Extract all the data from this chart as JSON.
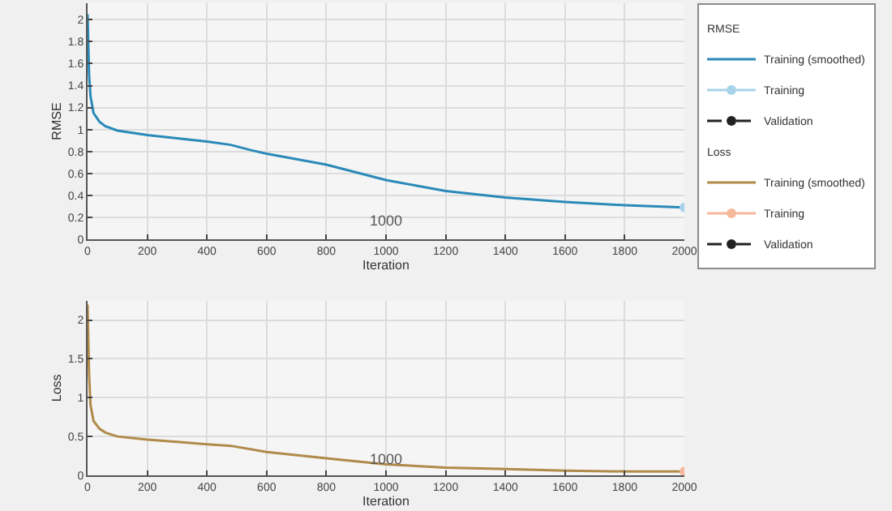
{
  "chart_data": [
    {
      "type": "line",
      "xlabel": "Iteration",
      "ylabel": "RMSE",
      "legend_title": "RMSE",
      "legend": "top right",
      "grid": true,
      "xlim": [
        0,
        2000
      ],
      "xticks": [
        0,
        200,
        400,
        600,
        800,
        1000,
        1200,
        1400,
        1600,
        1800,
        2000
      ],
      "ylim": [
        0,
        2.15
      ],
      "yticks": [
        0,
        0.2,
        0.4,
        0.6,
        0.8,
        1,
        1.2,
        1.4,
        1.6,
        1.8,
        2
      ],
      "annotations": [
        "1000"
      ],
      "series": [
        {
          "name": "Training (smoothed)",
          "color": "#2a8ab8",
          "marker": "none",
          "line_style": "solid",
          "x": [
            0,
            5,
            10,
            20,
            40,
            60,
            100,
            200,
            300,
            400,
            480,
            550,
            600,
            700,
            800,
            900,
            1000,
            1100,
            1200,
            1400,
            1600,
            1800,
            2000
          ],
          "values": [
            2.05,
            1.5,
            1.3,
            1.15,
            1.07,
            1.03,
            0.99,
            0.95,
            0.92,
            0.89,
            0.86,
            0.81,
            0.78,
            0.73,
            0.68,
            0.61,
            0.54,
            0.49,
            0.44,
            0.38,
            0.34,
            0.31,
            0.29
          ]
        },
        {
          "name": "Training",
          "color": "#a8d4ea",
          "marker": "circle",
          "line_style": "solid",
          "x": [
            2000
          ],
          "values": [
            0.29
          ]
        },
        {
          "name": "Validation",
          "color": "#222222",
          "marker": "circle",
          "line_style": "dashed"
        }
      ]
    },
    {
      "type": "line",
      "xlabel": "Iteration",
      "ylabel": "Loss",
      "legend_title": "Loss",
      "legend": "top right",
      "grid": true,
      "xlim": [
        0,
        2000
      ],
      "xticks": [
        0,
        200,
        400,
        600,
        800,
        1000,
        1200,
        1400,
        1600,
        1800,
        2000
      ],
      "ylim": [
        0,
        2.25
      ],
      "yticks": [
        0,
        0.5,
        1,
        1.5,
        2
      ],
      "annotations": [
        "1000"
      ],
      "series": [
        {
          "name": "Training (smoothed)",
          "color": "#b08a4a",
          "marker": "none",
          "line_style": "solid",
          "x": [
            0,
            5,
            10,
            20,
            40,
            60,
            100,
            200,
            300,
            400,
            480,
            600,
            800,
            1000,
            1200,
            1400,
            1600,
            1800,
            2000
          ],
          "values": [
            2.2,
            1.3,
            0.9,
            0.7,
            0.6,
            0.55,
            0.5,
            0.46,
            0.43,
            0.4,
            0.38,
            0.3,
            0.22,
            0.14,
            0.1,
            0.08,
            0.06,
            0.05,
            0.05
          ]
        },
        {
          "name": "Training",
          "color": "#f5b89a",
          "marker": "circle",
          "line_style": "solid",
          "x": [
            2000
          ],
          "values": [
            0.05
          ]
        },
        {
          "name": "Validation",
          "color": "#222222",
          "marker": "circle",
          "line_style": "dashed"
        }
      ]
    }
  ]
}
